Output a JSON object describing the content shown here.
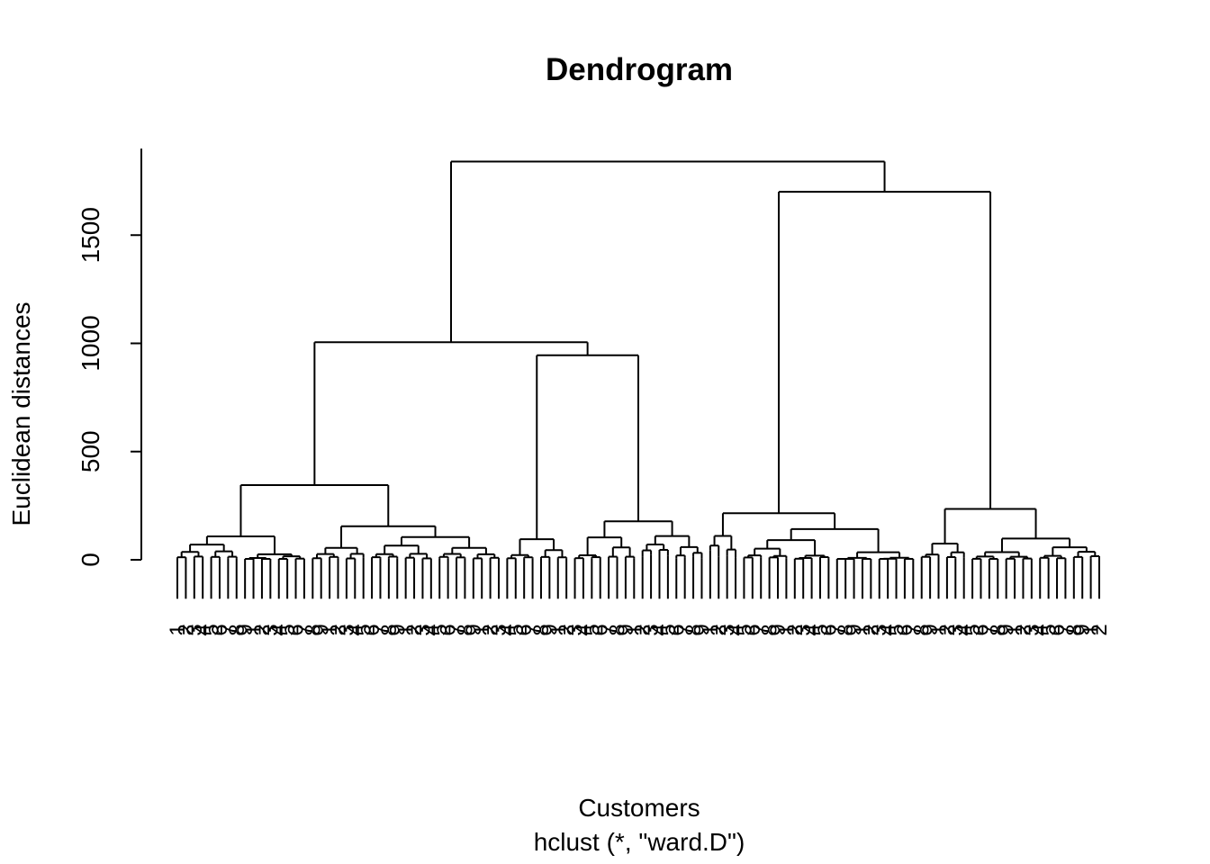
{
  "chart_data": {
    "type": "dendrogram",
    "title": "Dendrogram",
    "xlabel": "Customers",
    "sub": "hclust (*, \"ward.D\")",
    "ylabel": "Euclidean distances",
    "ylim": [
      0,
      1850
    ],
    "yticks": [
      0,
      500,
      1000,
      1500
    ],
    "hang": -180,
    "merges": {
      "root": 1840,
      "left": {
        "height": 1005,
        "left": {
          "height": 345,
          "left": {
            "height": 108,
            "leaves": 16
          },
          "right": {
            "height": 155,
            "left": {
              "height": 55,
              "leaves": 7
            },
            "right": {
              "height": 105,
              "leaves": 16
            }
          }
        },
        "right": {
          "height": 945,
          "left": {
            "height": 95,
            "leaves": 8
          },
          "right": {
            "height": 178,
            "leaves": 16
          }
        }
      },
      "right": {
        "height": 1700,
        "left": {
          "height": 215,
          "left": {
            "height": 110,
            "leaves": 4
          },
          "right": {
            "height": 142,
            "leaves": 21
          }
        },
        "right": {
          "height": 235,
          "left": {
            "height": 75,
            "leaves": 6
          },
          "right": {
            "height": 98,
            "leaves": 16
          }
        }
      }
    },
    "leaf_count": 110
  }
}
